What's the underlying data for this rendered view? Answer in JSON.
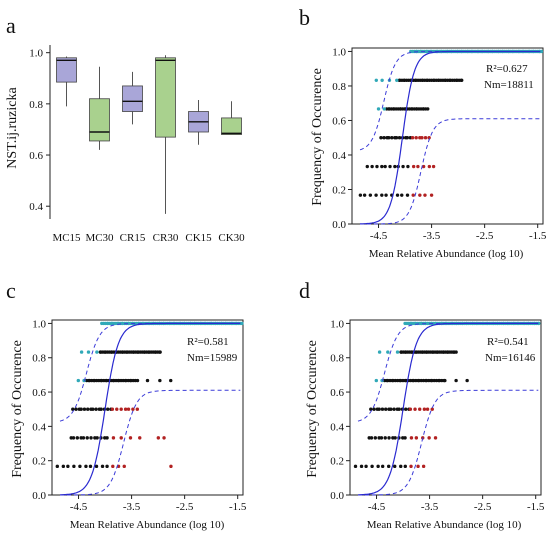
{
  "chart_data": [
    {
      "panel": "a",
      "type": "box",
      "ylabel": "NST.ij.ruzicka",
      "ylim": [
        0.35,
        1.03
      ],
      "yticks": [
        0.4,
        0.6,
        0.8,
        1.0
      ],
      "ytick_labels": [
        "0.4",
        "0.6",
        "0.8",
        "1.0"
      ],
      "categories": [
        "MC15",
        "MC30",
        "CR15",
        "CR30",
        "CK15",
        "CK30"
      ],
      "colors": {
        "MC15": "#a9a6d8",
        "MC30": "#a9d18e",
        "CR15": "#a9a6d8",
        "CR30": "#a9d18e",
        "CK15": "#a9a6d8",
        "CK30": "#a9d18e"
      },
      "boxes": [
        {
          "name": "MC15",
          "min": 0.79,
          "q1": 0.885,
          "median": 0.97,
          "q3": 0.98,
          "max": 0.985
        },
        {
          "name": "MC30",
          "min": 0.62,
          "q1": 0.655,
          "median": 0.69,
          "q3": 0.82,
          "max": 0.945
        },
        {
          "name": "CR15",
          "min": 0.72,
          "q1": 0.77,
          "median": 0.81,
          "q3": 0.87,
          "max": 0.925
        },
        {
          "name": "CR30",
          "min": 0.37,
          "q1": 0.67,
          "median": 0.97,
          "q3": 0.98,
          "max": 0.99
        },
        {
          "name": "CK15",
          "min": 0.64,
          "q1": 0.69,
          "median": 0.73,
          "q3": 0.77,
          "max": 0.815
        },
        {
          "name": "CK30",
          "min": 0.68,
          "q1": 0.68,
          "median": 0.685,
          "q3": 0.745,
          "max": 0.81
        }
      ]
    },
    {
      "panel": "b",
      "type": "scatter",
      "ylabel": "Frequency of Occurence",
      "xlabel": "Mean Relative Abundance (log 10)",
      "xlim": [
        -5.0,
        -1.4
      ],
      "ylim": [
        0.0,
        1.02
      ],
      "xticks": [
        -4.5,
        -3.5,
        -2.5,
        -1.5
      ],
      "xtick_labels": [
        "-4.5",
        "-3.5",
        "-2.5",
        "-1.5"
      ],
      "yticks": [
        0.0,
        0.2,
        0.4,
        0.6,
        0.8,
        1.0
      ],
      "ytick_labels": [
        "0.0",
        "0.2",
        "0.4",
        "0.6",
        "0.8",
        "1.0"
      ],
      "annotation": {
        "r2": "R²=0.627",
        "nm": "Nm=18811"
      },
      "fit": {
        "type": "sigmoid",
        "midpoint": -4.05,
        "slope": 9.0,
        "ci_upper_midpoint": -4.4,
        "ci_lower_midpoint": -3.7,
        "lower_plateau": 0.61
      },
      "points": [
        {
          "y": 1.0,
          "from": -3.88,
          "to": -1.43,
          "color": "#31a9b8",
          "count": 90
        },
        {
          "y": 0.833,
          "from": -4.12,
          "to": -2.92,
          "color": "#111111",
          "count": 40
        },
        {
          "y": 0.833,
          "from": -4.55,
          "to": -4.16,
          "color": "#31a9b8",
          "count": 4
        },
        {
          "y": 0.667,
          "from": -4.35,
          "to": -3.58,
          "color": "#111111",
          "count": 26
        },
        {
          "y": 0.667,
          "from": -4.5,
          "to": -4.4,
          "color": "#31a9b8",
          "count": 2
        },
        {
          "y": 0.5,
          "from": -4.45,
          "to": -3.9,
          "color": "#111111",
          "count": 12
        },
        {
          "y": 0.5,
          "from": -3.85,
          "to": -3.55,
          "color": "#b22222",
          "count": 6
        },
        {
          "y": 0.333,
          "from": -4.7,
          "to": -3.95,
          "color": "#111111",
          "count": 10
        },
        {
          "y": 0.333,
          "from": -3.85,
          "to": -3.45,
          "color": "#b22222",
          "count": 5
        },
        {
          "y": 0.167,
          "from": -4.85,
          "to": -3.95,
          "color": "#111111",
          "count": 10
        },
        {
          "y": 0.167,
          "from": -3.85,
          "to": -3.5,
          "color": "#b22222",
          "count": 4
        }
      ]
    },
    {
      "panel": "c",
      "type": "scatter",
      "ylabel": "Frequency of Occurence",
      "xlabel": "Mean Relative Abundance (log 10)",
      "xlim": [
        -5.0,
        -1.4
      ],
      "ylim": [
        0.0,
        1.02
      ],
      "xticks": [
        -4.5,
        -3.5,
        -2.5,
        -1.5
      ],
      "xtick_labels": [
        "-4.5",
        "-3.5",
        "-2.5",
        "-1.5"
      ],
      "yticks": [
        0.0,
        0.2,
        0.4,
        0.6,
        0.8,
        1.0
      ],
      "ytick_labels": [
        "0.0",
        "0.2",
        "0.4",
        "0.6",
        "0.8",
        "1.0"
      ],
      "annotation": {
        "r2": "R²=0.581",
        "nm": "Nm=15989"
      },
      "fit": {
        "type": "sigmoid",
        "midpoint": -4.0,
        "slope": 8.0,
        "ci_upper_midpoint": -4.35,
        "ci_lower_midpoint": -3.65,
        "lower_plateau": 0.61
      },
      "points": [
        {
          "y": 1.0,
          "from": -4.05,
          "to": -1.43,
          "color": "#31a9b8",
          "count": 95
        },
        {
          "y": 0.833,
          "from": -4.1,
          "to": -2.95,
          "color": "#111111",
          "count": 40
        },
        {
          "y": 0.833,
          "from": -4.45,
          "to": -4.15,
          "color": "#31a9b8",
          "count": 3
        },
        {
          "y": 0.667,
          "from": -4.35,
          "to": -3.4,
          "color": "#111111",
          "count": 30
        },
        {
          "y": 0.667,
          "from": -3.2,
          "to": -2.75,
          "color": "#111111",
          "count": 3
        },
        {
          "y": 0.667,
          "from": -4.5,
          "to": -4.4,
          "color": "#31a9b8",
          "count": 2
        },
        {
          "y": 0.5,
          "from": -4.6,
          "to": -3.9,
          "color": "#111111",
          "count": 14
        },
        {
          "y": 0.5,
          "from": -3.85,
          "to": -3.4,
          "color": "#b22222",
          "count": 7
        },
        {
          "y": 0.333,
          "from": -4.65,
          "to": -3.95,
          "color": "#111111",
          "count": 12
        },
        {
          "y": 0.333,
          "from": -3.85,
          "to": -3.35,
          "color": "#b22222",
          "count": 4
        },
        {
          "y": 0.333,
          "from": -3.0,
          "to": -2.9,
          "color": "#b22222",
          "count": 2
        },
        {
          "y": 0.167,
          "from": -4.9,
          "to": -3.95,
          "color": "#111111",
          "count": 10
        },
        {
          "y": 0.167,
          "from": -3.85,
          "to": -3.65,
          "color": "#b22222",
          "count": 3
        },
        {
          "y": 0.167,
          "from": -2.75,
          "to": -2.75,
          "color": "#b22222",
          "count": 1
        }
      ]
    },
    {
      "panel": "d",
      "type": "scatter",
      "ylabel": "Frequency of Occurence",
      "xlabel": "Mean Relative Abundance (log 10)",
      "xlim": [
        -5.0,
        -1.4
      ],
      "ylim": [
        0.0,
        1.02
      ],
      "xticks": [
        -4.5,
        -3.5,
        -2.5,
        -1.5
      ],
      "xtick_labels": [
        "-4.5",
        "-3.5",
        "-2.5",
        "-1.5"
      ],
      "yticks": [
        0.0,
        0.2,
        0.4,
        0.6,
        0.8,
        1.0
      ],
      "ytick_labels": [
        "0.0",
        "0.2",
        "0.4",
        "0.6",
        "0.8",
        "1.0"
      ],
      "annotation": {
        "r2": "R²=0.541",
        "nm": "Nm=16146"
      },
      "fit": {
        "type": "sigmoid",
        "midpoint": -4.0,
        "slope": 8.0,
        "ci_upper_midpoint": -4.35,
        "ci_lower_midpoint": -3.65,
        "lower_plateau": 0.61
      },
      "points": [
        {
          "y": 1.0,
          "from": -3.95,
          "to": -1.43,
          "color": "#31a9b8",
          "count": 92
        },
        {
          "y": 0.833,
          "from": -4.05,
          "to": -3.0,
          "color": "#111111",
          "count": 38
        },
        {
          "y": 0.833,
          "from": -4.45,
          "to": -4.1,
          "color": "#31a9b8",
          "count": 3
        },
        {
          "y": 0.667,
          "from": -4.35,
          "to": -3.2,
          "color": "#111111",
          "count": 34
        },
        {
          "y": 0.667,
          "from": -3.0,
          "to": -2.8,
          "color": "#111111",
          "count": 2
        },
        {
          "y": 0.667,
          "from": -4.5,
          "to": -4.4,
          "color": "#31a9b8",
          "count": 2
        },
        {
          "y": 0.5,
          "from": -4.6,
          "to": -3.9,
          "color": "#111111",
          "count": 14
        },
        {
          "y": 0.5,
          "from": -3.85,
          "to": -3.45,
          "color": "#b22222",
          "count": 6
        },
        {
          "y": 0.333,
          "from": -4.65,
          "to": -3.95,
          "color": "#111111",
          "count": 12
        },
        {
          "y": 0.333,
          "from": -3.85,
          "to": -3.4,
          "color": "#b22222",
          "count": 5
        },
        {
          "y": 0.167,
          "from": -4.9,
          "to": -3.95,
          "color": "#111111",
          "count": 10
        },
        {
          "y": 0.167,
          "from": -3.85,
          "to": -3.6,
          "color": "#b22222",
          "count": 3
        }
      ]
    }
  ]
}
